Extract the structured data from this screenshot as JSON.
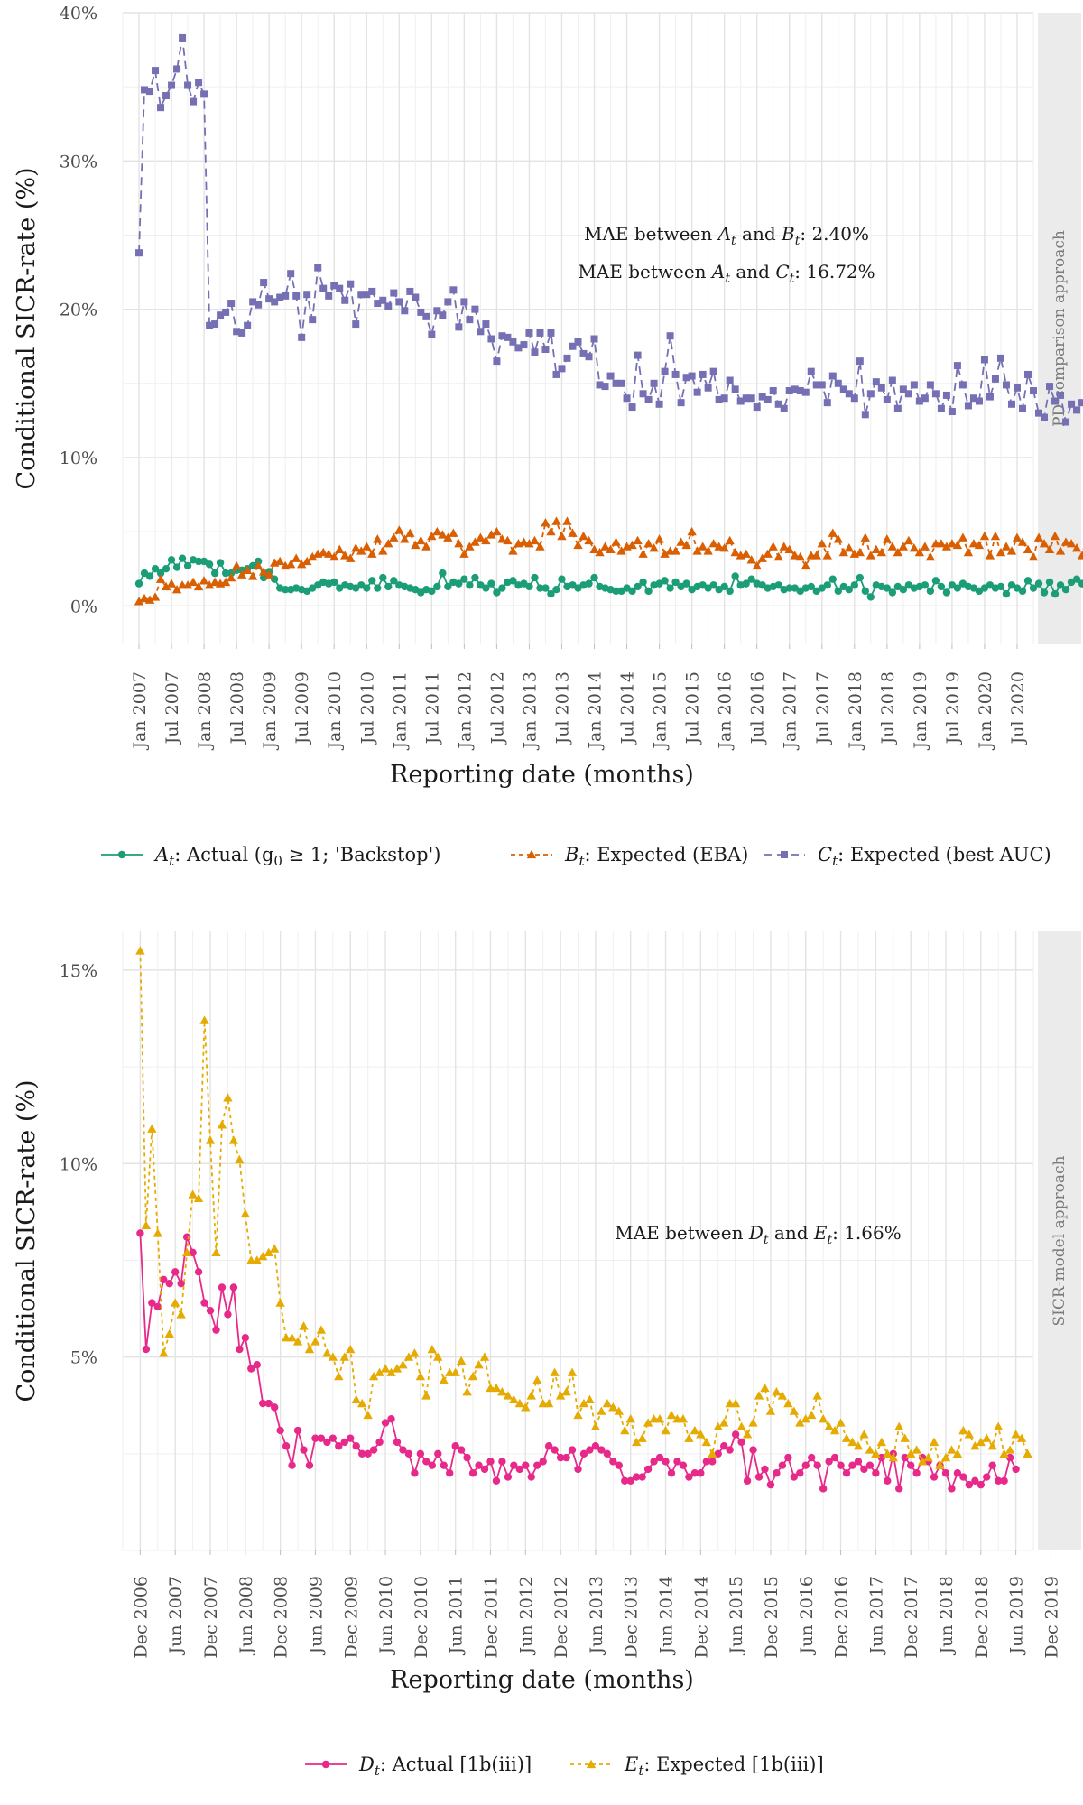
{
  "chart_data": [
    {
      "type": "line",
      "facet_label": "PD-comparison approach",
      "xlabel": "Reporting date (months)",
      "ylabel": "Conditional SICR-rate (%)",
      "ylim": [
        0,
        0.4
      ],
      "y_ticks": [
        0,
        0.1,
        0.2,
        0.3,
        0.4
      ],
      "y_tick_labels": [
        "0%",
        "10%",
        "20%",
        "30%",
        "40%"
      ],
      "x_start": "2007-01",
      "x_ticks": [
        "Jan 2007",
        "Jul 2007",
        "Jan 2008",
        "Jul 2008",
        "Jan 2009",
        "Jul 2009",
        "Jan 2010",
        "Jul 2010",
        "Jan 2011",
        "Jul 2011",
        "Jan 2012",
        "Jul 2012",
        "Jan 2013",
        "Jul 2013",
        "Jan 2014",
        "Jul 2014",
        "Jan 2015",
        "Jul 2015",
        "Jan 2016",
        "Jul 2016",
        "Jan 2017",
        "Jul 2017",
        "Jan 2018",
        "Jul 2018",
        "Jan 2019",
        "Jul 2019",
        "Jan 2020",
        "Jul 2020"
      ],
      "annotations": [
        {
          "prefix": "MAE between ",
          "a": "A",
          "mid": " and ",
          "b": "B",
          "suffix": ": 2.40%"
        },
        {
          "prefix": "MAE between ",
          "a": "A",
          "mid": " and ",
          "b": "C",
          "suffix": ": 16.72%"
        }
      ],
      "series": [
        {
          "symbol": "A",
          "name": ": Actual (g",
          "name_sub": "0",
          "name_rest": " ≥ 1; 'Backstop')",
          "color": "#1b9e77",
          "marker": "circle",
          "dash": "",
          "values": [
            0.015,
            0.022,
            0.02,
            0.025,
            0.022,
            0.025,
            0.031,
            0.026,
            0.032,
            0.027,
            0.031,
            0.03,
            0.03,
            0.028,
            0.022,
            0.029,
            0.022,
            0.022,
            0.024,
            0.024,
            0.025,
            0.027,
            0.03,
            0.019,
            0.023,
            0.018,
            0.012,
            0.011,
            0.011,
            0.012,
            0.011,
            0.01,
            0.012,
            0.014,
            0.016,
            0.015,
            0.016,
            0.012,
            0.014,
            0.013,
            0.012,
            0.014,
            0.012,
            0.017,
            0.012,
            0.019,
            0.013,
            0.017,
            0.014,
            0.013,
            0.012,
            0.011,
            0.009,
            0.011,
            0.01,
            0.013,
            0.022,
            0.013,
            0.016,
            0.015,
            0.018,
            0.014,
            0.019,
            0.014,
            0.012,
            0.015,
            0.009,
            0.012,
            0.016,
            0.017,
            0.014,
            0.015,
            0.013,
            0.019,
            0.012,
            0.012,
            0.008,
            0.011,
            0.018,
            0.013,
            0.014,
            0.012,
            0.014,
            0.015,
            0.019,
            0.013,
            0.012,
            0.011,
            0.01,
            0.01,
            0.012,
            0.01,
            0.013,
            0.016,
            0.01,
            0.014,
            0.015,
            0.017,
            0.012,
            0.016,
            0.013,
            0.015,
            0.011,
            0.013,
            0.014,
            0.012,
            0.014,
            0.011,
            0.013,
            0.01,
            0.02,
            0.014,
            0.015,
            0.018,
            0.015,
            0.014,
            0.012,
            0.013,
            0.014,
            0.011,
            0.012,
            0.012,
            0.01,
            0.012,
            0.013,
            0.01,
            0.012,
            0.014,
            0.018,
            0.01,
            0.013,
            0.011,
            0.014,
            0.019,
            0.01,
            0.006,
            0.014,
            0.013,
            0.012,
            0.009,
            0.013,
            0.011,
            0.014,
            0.012,
            0.013,
            0.014,
            0.01,
            0.017,
            0.013,
            0.009,
            0.014,
            0.012,
            0.015,
            0.013,
            0.012,
            0.01,
            0.012,
            0.014,
            0.012,
            0.013,
            0.008,
            0.014,
            0.012,
            0.01,
            0.017,
            0.012,
            0.015,
            0.009,
            0.016,
            0.008,
            0.014,
            0.011,
            0.016,
            0.018,
            0.015,
            0.014,
            0.014
          ]
        },
        {
          "symbol": "B",
          "name": ": Expected (EBA)",
          "color": "#d95f02",
          "marker": "triangle",
          "dash": "5,4",
          "values": [
            0.003,
            0.005,
            0.004,
            0.006,
            0.018,
            0.013,
            0.015,
            0.011,
            0.014,
            0.014,
            0.016,
            0.013,
            0.017,
            0.014,
            0.016,
            0.015,
            0.016,
            0.019,
            0.027,
            0.021,
            0.024,
            0.02,
            0.027,
            0.023,
            0.021,
            0.029,
            0.03,
            0.027,
            0.028,
            0.032,
            0.028,
            0.03,
            0.033,
            0.035,
            0.036,
            0.035,
            0.033,
            0.038,
            0.034,
            0.032,
            0.039,
            0.037,
            0.04,
            0.035,
            0.045,
            0.037,
            0.042,
            0.046,
            0.051,
            0.045,
            0.049,
            0.041,
            0.044,
            0.04,
            0.047,
            0.05,
            0.048,
            0.046,
            0.049,
            0.042,
            0.035,
            0.04,
            0.043,
            0.046,
            0.044,
            0.048,
            0.05,
            0.045,
            0.044,
            0.037,
            0.042,
            0.043,
            0.042,
            0.044,
            0.04,
            0.056,
            0.05,
            0.057,
            0.047,
            0.057,
            0.049,
            0.041,
            0.047,
            0.044,
            0.038,
            0.036,
            0.04,
            0.038,
            0.043,
            0.037,
            0.04,
            0.041,
            0.044,
            0.035,
            0.042,
            0.039,
            0.045,
            0.035,
            0.037,
            0.037,
            0.043,
            0.041,
            0.05,
            0.037,
            0.04,
            0.037,
            0.042,
            0.04,
            0.039,
            0.044,
            0.036,
            0.034,
            0.035,
            0.031,
            0.027,
            0.032,
            0.035,
            0.04,
            0.033,
            0.04,
            0.038,
            0.034,
            0.033,
            0.027,
            0.034,
            0.034,
            0.042,
            0.034,
            0.049,
            0.045,
            0.036,
            0.039,
            0.035,
            0.036,
            0.046,
            0.034,
            0.038,
            0.036,
            0.045,
            0.04,
            0.036,
            0.04,
            0.044,
            0.039,
            0.036,
            0.04,
            0.033,
            0.042,
            0.042,
            0.04,
            0.042,
            0.041,
            0.046,
            0.036,
            0.042,
            0.041,
            0.047,
            0.034,
            0.047,
            0.036,
            0.04,
            0.037,
            0.046,
            0.043,
            0.038,
            0.033,
            0.046,
            0.042,
            0.038,
            0.047,
            0.037,
            0.043,
            0.042,
            0.039,
            0.034,
            0.051,
            0.028,
            0.054,
            0.037,
            0.043,
            0.04,
            0.041,
            0.037,
            0.044,
            0.04,
            0.048,
            0.037,
            0.043,
            0.04,
            0.042,
            0.041,
            0.04,
            0.034,
            0.048
          ]
        },
        {
          "symbol": "C",
          "name": ": Expected (best AUC)",
          "color": "#7570b3",
          "marker": "square",
          "dash": "9,6",
          "values": [
            0.238,
            0.348,
            0.347,
            0.361,
            0.336,
            0.344,
            0.351,
            0.362,
            0.383,
            0.351,
            0.34,
            0.353,
            0.345,
            0.189,
            0.19,
            0.196,
            0.198,
            0.204,
            0.185,
            0.184,
            0.189,
            0.205,
            0.203,
            0.218,
            0.207,
            0.205,
            0.208,
            0.209,
            0.224,
            0.209,
            0.181,
            0.21,
            0.193,
            0.228,
            0.214,
            0.209,
            0.216,
            0.214,
            0.206,
            0.217,
            0.19,
            0.21,
            0.21,
            0.212,
            0.204,
            0.206,
            0.202,
            0.211,
            0.205,
            0.199,
            0.212,
            0.208,
            0.198,
            0.195,
            0.183,
            0.199,
            0.196,
            0.205,
            0.213,
            0.188,
            0.205,
            0.193,
            0.2,
            0.185,
            0.19,
            0.18,
            0.165,
            0.182,
            0.181,
            0.178,
            0.174,
            0.176,
            0.184,
            0.171,
            0.184,
            0.173,
            0.184,
            0.156,
            0.16,
            0.167,
            0.175,
            0.178,
            0.17,
            0.168,
            0.18,
            0.149,
            0.148,
            0.155,
            0.15,
            0.15,
            0.14,
            0.134,
            0.169,
            0.143,
            0.139,
            0.15,
            0.136,
            0.158,
            0.182,
            0.156,
            0.137,
            0.154,
            0.155,
            0.144,
            0.156,
            0.147,
            0.158,
            0.139,
            0.14,
            0.152,
            0.146,
            0.138,
            0.14,
            0.14,
            0.134,
            0.141,
            0.139,
            0.145,
            0.136,
            0.133,
            0.145,
            0.146,
            0.145,
            0.144,
            0.158,
            0.149,
            0.149,
            0.137,
            0.155,
            0.15,
            0.146,
            0.143,
            0.14,
            0.165,
            0.129,
            0.143,
            0.151,
            0.147,
            0.139,
            0.152,
            0.133,
            0.146,
            0.143,
            0.149,
            0.138,
            0.14,
            0.149,
            0.143,
            0.133,
            0.142,
            0.131,
            0.162,
            0.149,
            0.135,
            0.14,
            0.138,
            0.166,
            0.141,
            0.153,
            0.167,
            0.149,
            0.136,
            0.147,
            0.133,
            0.156,
            0.145,
            0.13,
            0.127,
            0.148,
            0.138,
            0.142,
            0.124,
            0.136,
            0.132,
            0.137,
            0.128,
            0.146,
            0.148
          ]
        }
      ]
    },
    {
      "type": "line",
      "facet_label": "SICR-model approach",
      "xlabel": "Reporting date (months)",
      "ylabel": "Conditional SICR-rate (%)",
      "ylim": [
        0,
        0.16
      ],
      "y_ticks": [
        0.05,
        0.1,
        0.15
      ],
      "y_tick_labels": [
        "5%",
        "10%",
        "15%"
      ],
      "x_start": "2006-12",
      "x_ticks": [
        "Dec 2006",
        "Jun 2007",
        "Dec 2007",
        "Jun 2008",
        "Dec 2008",
        "Jun 2009",
        "Dec 2009",
        "Jun 2010",
        "Dec 2010",
        "Jun 2011",
        "Dec 2011",
        "Jun 2012",
        "Dec 2012",
        "Jun 2013",
        "Dec 2013",
        "Jun 2014",
        "Dec 2014",
        "Jun 2015",
        "Dec 2015",
        "Jun 2016",
        "Dec 2016",
        "Jun 2017",
        "Dec 2017",
        "Jun 2018",
        "Dec 2018",
        "Jun 2019",
        "Dec 2019"
      ],
      "annotations": [
        {
          "prefix": "MAE between ",
          "a": "D",
          "mid": " and ",
          "b": "E",
          "suffix": ": 1.66%"
        }
      ],
      "series": [
        {
          "symbol": "D",
          "name": ": Actual [1b(iii)]",
          "color": "#e7298a",
          "marker": "circle",
          "dash": "",
          "values": [
            0.082,
            0.052,
            0.064,
            0.063,
            0.07,
            0.069,
            0.072,
            0.069,
            0.081,
            0.077,
            0.072,
            0.064,
            0.062,
            0.057,
            0.068,
            0.061,
            0.068,
            0.052,
            0.055,
            0.047,
            0.048,
            0.038,
            0.038,
            0.037,
            0.031,
            0.027,
            0.022,
            0.031,
            0.026,
            0.022,
            0.029,
            0.029,
            0.028,
            0.029,
            0.027,
            0.028,
            0.029,
            0.027,
            0.025,
            0.025,
            0.026,
            0.028,
            0.033,
            0.034,
            0.028,
            0.026,
            0.025,
            0.02,
            0.025,
            0.023,
            0.022,
            0.025,
            0.022,
            0.02,
            0.027,
            0.026,
            0.024,
            0.02,
            0.022,
            0.021,
            0.023,
            0.018,
            0.023,
            0.019,
            0.022,
            0.021,
            0.022,
            0.019,
            0.022,
            0.023,
            0.027,
            0.026,
            0.024,
            0.024,
            0.026,
            0.021,
            0.025,
            0.026,
            0.027,
            0.026,
            0.025,
            0.023,
            0.022,
            0.018,
            0.018,
            0.019,
            0.019,
            0.021,
            0.023,
            0.024,
            0.023,
            0.02,
            0.023,
            0.022,
            0.019,
            0.02,
            0.02,
            0.023,
            0.023,
            0.025,
            0.027,
            0.026,
            0.03,
            0.028,
            0.018,
            0.026,
            0.019,
            0.021,
            0.017,
            0.02,
            0.022,
            0.024,
            0.019,
            0.02,
            0.022,
            0.024,
            0.022,
            0.016,
            0.023,
            0.024,
            0.022,
            0.02,
            0.022,
            0.023,
            0.021,
            0.022,
            0.02,
            0.024,
            0.018,
            0.025,
            0.016,
            0.024,
            0.022,
            0.02,
            0.024,
            0.023,
            0.019,
            0.022,
            0.02,
            0.016,
            0.02,
            0.019,
            0.017,
            0.018,
            0.017,
            0.019,
            0.022,
            0.018,
            0.018,
            0.024,
            0.021
          ]
        },
        {
          "symbol": "E",
          "name": ": Expected [1b(iii)]",
          "color": "#e6ab02",
          "marker": "triangle",
          "dash": "4,4",
          "values": [
            0.155,
            0.084,
            0.109,
            0.082,
            0.051,
            0.056,
            0.064,
            0.061,
            0.077,
            0.092,
            0.091,
            0.137,
            0.106,
            0.077,
            0.11,
            0.117,
            0.106,
            0.101,
            0.087,
            0.075,
            0.075,
            0.076,
            0.077,
            0.078,
            0.064,
            0.055,
            0.055,
            0.054,
            0.058,
            0.052,
            0.054,
            0.057,
            0.051,
            0.05,
            0.045,
            0.05,
            0.052,
            0.039,
            0.038,
            0.035,
            0.045,
            0.046,
            0.047,
            0.046,
            0.047,
            0.048,
            0.05,
            0.051,
            0.045,
            0.04,
            0.052,
            0.05,
            0.044,
            0.046,
            0.046,
            0.049,
            0.041,
            0.045,
            0.048,
            0.05,
            0.042,
            0.042,
            0.041,
            0.04,
            0.039,
            0.038,
            0.037,
            0.04,
            0.044,
            0.038,
            0.038,
            0.046,
            0.04,
            0.041,
            0.046,
            0.035,
            0.038,
            0.039,
            0.032,
            0.036,
            0.038,
            0.037,
            0.036,
            0.031,
            0.034,
            0.028,
            0.029,
            0.033,
            0.034,
            0.034,
            0.031,
            0.035,
            0.034,
            0.034,
            0.029,
            0.031,
            0.03,
            0.028,
            0.025,
            0.032,
            0.033,
            0.038,
            0.038,
            0.032,
            0.03,
            0.033,
            0.04,
            0.042,
            0.036,
            0.041,
            0.04,
            0.038,
            0.036,
            0.033,
            0.034,
            0.035,
            0.04,
            0.034,
            0.032,
            0.031,
            0.033,
            0.029,
            0.028,
            0.027,
            0.03,
            0.026,
            0.025,
            0.028,
            0.025,
            0.024,
            0.032,
            0.029,
            0.025,
            0.026,
            0.023,
            0.024,
            0.028,
            0.022,
            0.024,
            0.026,
            0.025,
            0.031,
            0.03,
            0.027,
            0.028,
            0.029,
            0.027,
            0.032,
            0.025,
            0.026,
            0.03,
            0.029,
            0.025
          ]
        }
      ]
    }
  ]
}
